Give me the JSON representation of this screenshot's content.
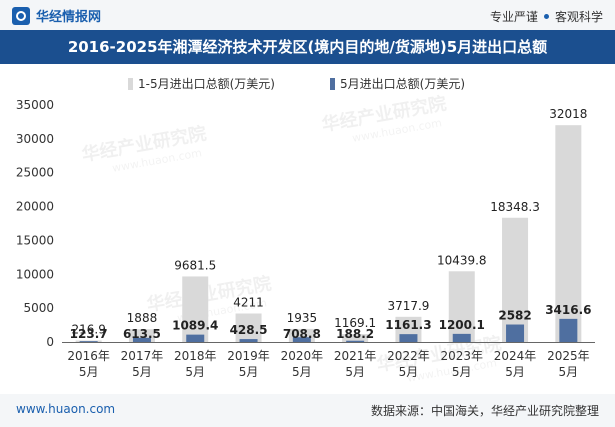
{
  "header": {
    "brand": "华经情报网",
    "slogan_left": "专业严谨",
    "slogan_right": "客观科学"
  },
  "title": "2016-2025年湘潭经济技术开发区(境内目的地/货源地)5月进出口总额",
  "footer": {
    "website": "www.huaon.com",
    "source": "数据来源：中国海关，华经产业研究院整理"
  },
  "watermark": "华经产业研究院",
  "watermark_url": "www.huaon.com",
  "colors": {
    "series1": "#d9d9d9",
    "series2": "#4f6fa0",
    "header_bg": "#1b4f8f"
  },
  "chart_data": {
    "type": "bar",
    "categories": [
      [
        "2016年",
        "5月"
      ],
      [
        "2017年",
        "5月"
      ],
      [
        "2018年",
        "5月"
      ],
      [
        "2019年",
        "5月"
      ],
      [
        "2020年",
        "5月"
      ],
      [
        "2021年",
        "5月"
      ],
      [
        "2022年",
        "5月"
      ],
      [
        "2023年",
        "5月"
      ],
      [
        "2024年",
        "5月"
      ],
      [
        "2025年",
        "5月"
      ]
    ],
    "series": [
      {
        "name": "1-5月进出口总额(万美元)",
        "values": [
          216.9,
          1888,
          9681.5,
          4211,
          1935,
          1169.1,
          3717.9,
          10439.8,
          18348.3,
          32018
        ],
        "labels": [
          "216.9",
          "1888",
          "9681.5",
          "4211",
          "1935",
          "1169.1",
          "3717.9",
          "10439.8",
          "18348.3",
          "32018"
        ]
      },
      {
        "name": "5月进出口总额(万美元)",
        "values": [
          123.7,
          613.5,
          1089.4,
          428.5,
          708.8,
          188.2,
          1161.3,
          1200.1,
          2582,
          3416.6
        ],
        "labels": [
          "123.7",
          "613.5",
          "1089.4",
          "428.5",
          "708.8",
          "188.2",
          "1161.3",
          "1200.1",
          "2582",
          "3416.6"
        ]
      }
    ],
    "ylim": [
      0,
      35000
    ],
    "yticks": [
      0,
      5000,
      10000,
      15000,
      20000,
      25000,
      30000,
      35000
    ],
    "ytick_labels": [
      "0",
      "5000",
      "10000",
      "15000",
      "20000",
      "25000",
      "30000",
      "35000"
    ],
    "legend_position": "top-left",
    "grid": false
  }
}
